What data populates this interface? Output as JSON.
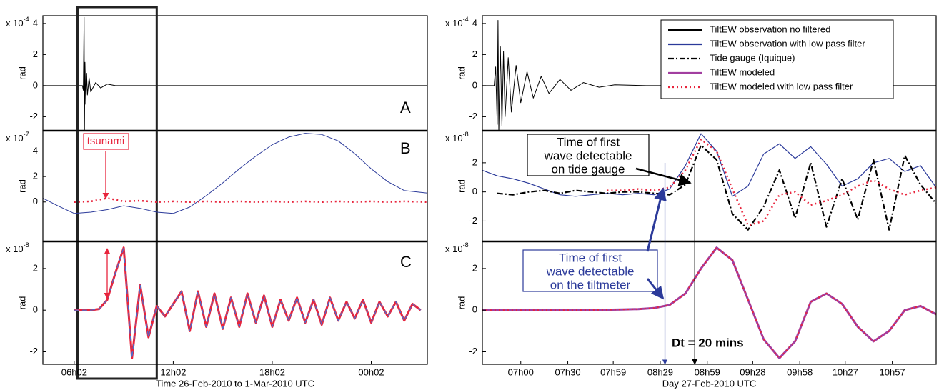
{
  "chart_data": [
    {
      "type": "line",
      "scale_label": "x 10",
      "scale_exp": "-4",
      "ylabel": "rad",
      "panel_label": "A",
      "xlim": [
        4.1,
        27.4
      ],
      "ylim": [
        -2.9,
        4.5
      ],
      "yticks": [
        -2,
        0,
        2,
        4
      ],
      "highlight": [
        6.2,
        11.0
      ],
      "x": [
        4.1,
        6.5,
        6.55,
        6.6,
        6.62,
        6.65,
        6.7,
        6.75,
        6.8,
        6.9,
        7.0,
        7.3,
        7.6,
        8.0,
        8.5,
        27.4
      ],
      "series": [
        {
          "color": "#000000",
          "style": "solid",
          "linewidth": 1,
          "values": [
            0,
            0,
            -0.3,
            4.4,
            -3,
            1.5,
            -1.2,
            0.8,
            -0.6,
            0.5,
            -0.4,
            0.2,
            -0.15,
            0.1,
            0,
            0
          ]
        }
      ]
    },
    {
      "type": "line",
      "scale_label": "x 10",
      "scale_exp": "-7",
      "ylabel": "rad",
      "panel_label": "B",
      "annotation": "tsunami",
      "xlim": [
        4.1,
        27.4
      ],
      "ylim": [
        -3.1,
        5.6
      ],
      "yticks": [
        0,
        2,
        4
      ],
      "x": [
        4.1,
        5,
        6,
        7,
        8,
        9,
        10,
        11,
        12,
        13,
        14,
        15,
        16,
        17,
        18,
        19,
        20,
        21,
        22,
        23,
        24,
        25,
        26,
        27.4
      ],
      "series": [
        {
          "color": "#2b3a9a",
          "style": "solid",
          "linewidth": 1,
          "values": [
            0.3,
            -0.3,
            -0.9,
            -0.8,
            -0.6,
            -0.3,
            -0.5,
            -0.8,
            -0.9,
            -0.4,
            0.5,
            1.5,
            2.6,
            3.6,
            4.5,
            5.1,
            5.4,
            5.3,
            4.8,
            3.8,
            2.6,
            1.6,
            0.9,
            0.7
          ]
        },
        {
          "color": "#e8243c",
          "style": "dotted",
          "linewidth": 2.5,
          "values": [
            null,
            null,
            0,
            0.05,
            0.3,
            0.05,
            0.1,
            0,
            0.05,
            0,
            0.05,
            0,
            0.05,
            0,
            0.05,
            0,
            0.05,
            0,
            0.05,
            0,
            0.05,
            0,
            0.05,
            0
          ]
        }
      ]
    },
    {
      "type": "line",
      "scale_label": "x 10",
      "scale_exp": "-8",
      "ylabel": "rad",
      "panel_label": "C",
      "xlim": [
        4.1,
        27.4
      ],
      "ylim": [
        -2.6,
        3.3
      ],
      "yticks": [
        -2,
        0,
        2
      ],
      "xticks": [
        {
          "value": 6,
          "label": "06h02"
        },
        {
          "value": 12,
          "label": "12h02"
        },
        {
          "value": 18,
          "label": "18h02"
        },
        {
          "value": 24,
          "label": "00h02"
        }
      ],
      "xlabel": "Time 26-Feb-2010 to  1-Mar-2010 UTC",
      "x": [
        6,
        6.5,
        7,
        7.5,
        8,
        8.5,
        9,
        9.5,
        10,
        10.5,
        11,
        11.5,
        12,
        12.5,
        13,
        13.5,
        14,
        14.5,
        15,
        15.5,
        16,
        16.5,
        17,
        17.5,
        18,
        18.5,
        19,
        19.5,
        20,
        20.5,
        21,
        21.5,
        22,
        22.5,
        23,
        23.5,
        24,
        24.5,
        25,
        25.5,
        26,
        26.5,
        27
      ],
      "series": [
        {
          "color": "#e8243c",
          "style": "solid",
          "linewidth": 3,
          "values": [
            0,
            0,
            0,
            0.05,
            0.5,
            1.8,
            3.0,
            -2.3,
            1.2,
            -1.3,
            0.2,
            -0.3,
            0.3,
            0.9,
            -1.0,
            0.9,
            -0.8,
            0.8,
            -0.9,
            0.6,
            -0.8,
            0.8,
            -0.6,
            0.7,
            -0.8,
            0.5,
            -0.5,
            0.6,
            -0.6,
            0.5,
            -0.7,
            0.6,
            -0.5,
            0.4,
            -0.4,
            0.5,
            -0.6,
            0.4,
            -0.3,
            0.4,
            -0.5,
            0.3,
            0
          ]
        },
        {
          "color": "#4a6fd0",
          "style": "dashed",
          "linewidth": 1.2,
          "values": [
            0,
            0,
            0,
            0.05,
            0.5,
            1.8,
            3.0,
            -2.3,
            1.2,
            -1.3,
            0.2,
            -0.3,
            0.3,
            0.9,
            -1.0,
            0.9,
            -0.8,
            0.8,
            -0.9,
            0.6,
            -0.8,
            0.8,
            -0.6,
            0.7,
            -0.8,
            0.5,
            -0.5,
            0.6,
            -0.6,
            0.5,
            -0.7,
            0.6,
            -0.5,
            0.4,
            -0.4,
            0.5,
            -0.6,
            0.4,
            -0.3,
            0.4,
            -0.5,
            0.3,
            0
          ]
        }
      ]
    },
    {
      "type": "line",
      "scale_label": "x 10",
      "scale_exp": "-4",
      "ylabel": "rad",
      "xlim": [
        395.5,
        685
      ],
      "ylim": [
        -2.9,
        4.5
      ],
      "yticks": [
        -2,
        0,
        2,
        4
      ],
      "x": [
        395.5,
        403,
        404,
        405,
        405.5,
        406,
        407,
        408,
        409,
        410,
        412,
        414,
        417,
        420,
        424,
        428,
        433,
        438,
        445,
        452,
        460,
        470,
        480,
        500,
        685
      ],
      "series": [
        {
          "color": "#000000",
          "style": "solid",
          "linewidth": 1,
          "values": [
            0,
            0,
            1.2,
            -2.5,
            4.2,
            -3,
            2.5,
            -2.6,
            2.2,
            -2,
            1.8,
            -1.7,
            1.3,
            -1.1,
            0.9,
            -0.8,
            0.6,
            -0.5,
            0.4,
            -0.3,
            0.2,
            -0.1,
            0.05,
            0,
            0
          ]
        }
      ],
      "legend": {
        "position": "upper right",
        "entries": [
          {
            "name": "TiltEW observation no filtered",
            "color": "#000000",
            "style": "solid"
          },
          {
            "name": "TiltEW observation with low pass filter",
            "color": "#2b3a9a",
            "style": "solid"
          },
          {
            "name": "Tide gauge (Iquique)",
            "color": "#000000",
            "style": "dashdot"
          },
          {
            "name": "TiltEW modeled",
            "color": "#a23ea0",
            "style": "solid"
          },
          {
            "name": "TiltEW modeled with low pass filter",
            "color": "#e8243c",
            "style": "dotted"
          }
        ]
      }
    },
    {
      "type": "line",
      "scale_label": "x 10",
      "scale_exp": "-8",
      "ylabel": "rad",
      "xlim": [
        395.5,
        685
      ],
      "ylim": [
        -3.4,
        4.2
      ],
      "yticks": [
        -2,
        0,
        2
      ],
      "callout": [
        "Time of first",
        "wave detectable",
        "on tide gauge"
      ],
      "x": [
        395,
        405,
        415,
        425,
        435,
        445,
        455,
        465,
        475,
        485,
        495,
        505,
        515,
        525,
        535,
        545,
        555,
        565,
        575,
        585,
        595,
        605,
        615,
        625,
        635,
        645,
        655,
        665,
        675,
        685
      ],
      "series": [
        {
          "color": "#2b3a9a",
          "style": "solid",
          "linewidth": 1.2,
          "values": [
            1.5,
            1.1,
            0.9,
            0.6,
            0.2,
            -0.2,
            -0.3,
            -0.2,
            -0.1,
            -0.2,
            -0.1,
            -0.2,
            0.2,
            1.8,
            4.0,
            2.8,
            -0.3,
            0.4,
            2.6,
            3.3,
            2.3,
            3.1,
            1.9,
            0.4,
            0.9,
            2.0,
            2.3,
            1.4,
            1.8,
            0.3
          ]
        },
        {
          "color": "#000000",
          "style": "dashdot",
          "linewidth": 2.2,
          "values": [
            null,
            -0.1,
            -0.2,
            0.0,
            0.1,
            -0.1,
            0.1,
            0.0,
            -0.1,
            0.0,
            0.0,
            -0.1,
            -0.2,
            0.5,
            3.2,
            2.2,
            -1.5,
            -2.6,
            -1.0,
            1.5,
            -1.8,
            2.0,
            -2.4,
            0.9,
            -1.9,
            2.2,
            -2.6,
            2.5,
            0.5,
            -0.8
          ]
        },
        {
          "color": "#e8243c",
          "style": "dotted",
          "linewidth": 2.5,
          "values": [
            null,
            null,
            null,
            null,
            null,
            null,
            null,
            null,
            0.1,
            0.1,
            0.2,
            0.1,
            0.3,
            1.5,
            3.6,
            2.8,
            0.2,
            -2.3,
            -2.0,
            -0.2,
            0.0,
            -0.9,
            -0.6,
            -0.2,
            0.4,
            0.8,
            0.2,
            -0.2,
            0.1,
            0.3
          ]
        }
      ]
    },
    {
      "type": "line",
      "scale_label": "x 10",
      "scale_exp": "-8",
      "ylabel": "rad",
      "xlim": [
        395.5,
        685
      ],
      "ylim": [
        -2.6,
        3.3
      ],
      "yticks": [
        -2,
        0,
        2
      ],
      "callout": [
        "Time of first",
        "wave detectable",
        "on the tiltmeter"
      ],
      "xticks": [
        {
          "value": 420,
          "label": "07h00"
        },
        {
          "value": 450,
          "label": "07h30"
        },
        {
          "value": 479,
          "label": "07h59"
        },
        {
          "value": 509,
          "label": "08h29"
        },
        {
          "value": 539,
          "label": "08h59"
        },
        {
          "value": 568,
          "label": "09h28"
        },
        {
          "value": 598,
          "label": "09h58"
        },
        {
          "value": 627,
          "label": "10h27"
        },
        {
          "value": 657,
          "label": "10h57"
        }
      ],
      "xlabel": "Day 27-Feb-2010 UTC",
      "dt_label": "Dt  = 20 mins",
      "vlines": [
        {
          "x": 512,
          "color": "#2b3a9a"
        },
        {
          "x": 531,
          "color": "#000000"
        }
      ],
      "x": [
        395,
        405,
        415,
        425,
        435,
        445,
        455,
        465,
        475,
        485,
        495,
        505,
        515,
        525,
        535,
        545,
        555,
        565,
        575,
        585,
        595,
        605,
        615,
        625,
        635,
        645,
        655,
        665,
        675,
        685
      ],
      "series": [
        {
          "color": "#a23ea0",
          "style": "solid",
          "linewidth": 3,
          "values": [
            0,
            0,
            0,
            0,
            0,
            0,
            0,
            0.01,
            0.02,
            0.03,
            0.05,
            0.1,
            0.25,
            0.8,
            2.0,
            3.0,
            2.4,
            0.5,
            -1.4,
            -2.3,
            -1.5,
            0.4,
            0.8,
            0.3,
            -0.8,
            -1.5,
            -1.0,
            0.0,
            0.2,
            -0.2
          ]
        },
        {
          "color": "#e8243c",
          "style": "dotted",
          "linewidth": 2,
          "values": [
            0,
            0,
            0,
            0,
            0,
            0,
            0,
            0.01,
            0.02,
            0.03,
            0.05,
            0.1,
            0.25,
            0.8,
            2.0,
            3.0,
            2.4,
            0.5,
            -1.4,
            -2.3,
            -1.5,
            0.4,
            0.8,
            0.3,
            -0.8,
            -1.5,
            -1.0,
            0.0,
            0.2,
            -0.2
          ]
        }
      ]
    }
  ]
}
